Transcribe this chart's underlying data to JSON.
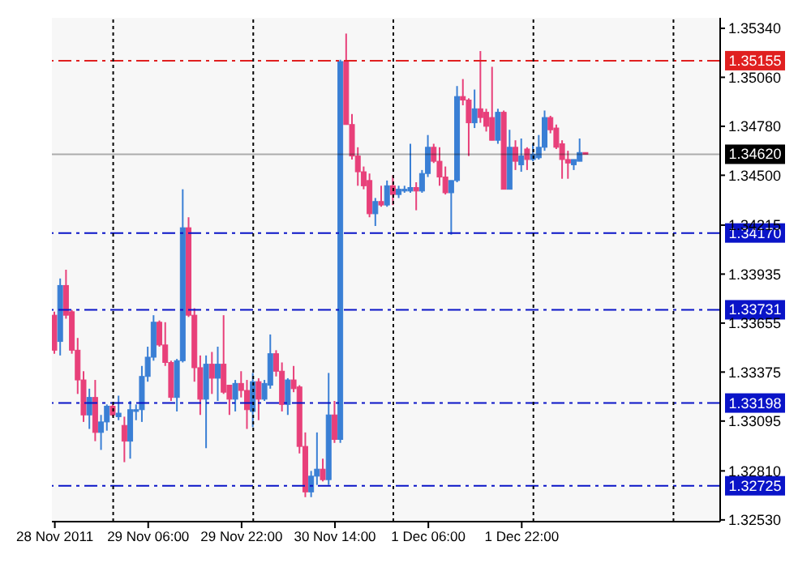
{
  "chart_data": {
    "type": "candlestick",
    "x": [
      "2011-11-28T14:00",
      "2011-11-28T15:00",
      "2011-11-28T16:00",
      "2011-11-28T17:00",
      "2011-11-28T18:00",
      "2011-11-28T19:00",
      "2011-11-28T20:00",
      "2011-11-28T21:00",
      "2011-11-28T22:00",
      "2011-11-28T23:00",
      "2011-11-29T00:00",
      "2011-11-29T01:00",
      "2011-11-29T02:00",
      "2011-11-29T03:00",
      "2011-11-29T04:00",
      "2011-11-29T05:00",
      "2011-11-29T06:00",
      "2011-11-29T07:00",
      "2011-11-29T08:00",
      "2011-11-29T09:00",
      "2011-11-29T10:00",
      "2011-11-29T11:00",
      "2011-11-29T12:00",
      "2011-11-29T13:00",
      "2011-11-29T14:00",
      "2011-11-29T15:00",
      "2011-11-29T16:00",
      "2011-11-29T17:00",
      "2011-11-29T18:00",
      "2011-11-29T19:00",
      "2011-11-29T20:00",
      "2011-11-29T21:00",
      "2011-11-29T22:00",
      "2011-11-29T23:00",
      "2011-11-30T00:00",
      "2011-11-30T01:00",
      "2011-11-30T02:00",
      "2011-11-30T03:00",
      "2011-11-30T04:00",
      "2011-11-30T05:00",
      "2011-11-30T06:00",
      "2011-11-30T07:00",
      "2011-11-30T08:00",
      "2011-11-30T09:00",
      "2011-11-30T10:00",
      "2011-11-30T11:00",
      "2011-11-30T12:00",
      "2011-11-30T13:00",
      "2011-11-30T14:00",
      "2011-11-30T15:00",
      "2011-11-30T16:00",
      "2011-11-30T17:00",
      "2011-11-30T18:00",
      "2011-11-30T19:00",
      "2011-11-30T20:00",
      "2011-11-30T21:00",
      "2011-11-30T22:00",
      "2011-11-30T23:00",
      "2011-12-01T00:00",
      "2011-12-01T01:00",
      "2011-12-01T02:00",
      "2011-12-01T03:00",
      "2011-12-01T04:00",
      "2011-12-01T05:00",
      "2011-12-01T06:00",
      "2011-12-01T07:00",
      "2011-12-01T08:00",
      "2011-12-01T09:00",
      "2011-12-01T10:00",
      "2011-12-01T11:00",
      "2011-12-01T12:00",
      "2011-12-01T13:00",
      "2011-12-01T14:00",
      "2011-12-01T15:00",
      "2011-12-01T16:00",
      "2011-12-01T17:00",
      "2011-12-01T18:00",
      "2011-12-01T19:00",
      "2011-12-01T20:00",
      "2011-12-01T21:00",
      "2011-12-01T22:00",
      "2011-12-01T23:00",
      "2011-12-02T00:00",
      "2011-12-02T01:00",
      "2011-12-02T02:00",
      "2011-12-02T03:00",
      "2011-12-02T04:00",
      "2011-12-02T05:00",
      "2011-12-02T06:00",
      "2011-12-02T07:00",
      "2011-12-02T08:00",
      "2011-12-02T09:00"
    ],
    "ohlc": [
      [
        1.337,
        1.3372,
        1.3348,
        1.335
      ],
      [
        1.3355,
        1.3391,
        1.3347,
        1.3387
      ],
      [
        1.3387,
        1.3396,
        1.3368,
        1.337
      ],
      [
        1.3372,
        1.3373,
        1.3348,
        1.335
      ],
      [
        1.335,
        1.3357,
        1.3325,
        1.3333
      ],
      [
        1.3333,
        1.3338,
        1.3309,
        1.3313
      ],
      [
        1.3313,
        1.3328,
        1.3305,
        1.3323
      ],
      [
        1.3323,
        1.3333,
        1.3298,
        1.3303
      ],
      [
        1.3303,
        1.3313,
        1.3293,
        1.3309
      ],
      [
        1.3309,
        1.3319,
        1.3304,
        1.3318
      ],
      [
        1.3318,
        1.3319,
        1.3312,
        1.3313
      ],
      [
        1.3312,
        1.3324,
        1.331,
        1.3314
      ],
      [
        1.3307,
        1.3312,
        1.3286,
        1.3298
      ],
      [
        1.3298,
        1.3321,
        1.3288,
        1.3316
      ],
      [
        1.3315,
        1.3319,
        1.331,
        1.3316
      ],
      [
        1.3316,
        1.3341,
        1.3309,
        1.3335
      ],
      [
        1.3335,
        1.3352,
        1.3332,
        1.3346
      ],
      [
        1.3346,
        1.337,
        1.3344,
        1.3366
      ],
      [
        1.3366,
        1.3367,
        1.3352,
        1.3353
      ],
      [
        1.3353,
        1.3366,
        1.3341,
        1.3343
      ],
      [
        1.3343,
        1.3344,
        1.3321,
        1.3323
      ],
      [
        1.3323,
        1.3345,
        1.3315,
        1.3344
      ],
      [
        1.3344,
        1.3442,
        1.3343,
        1.342
      ],
      [
        1.342,
        1.3426,
        1.3369,
        1.337
      ],
      [
        1.337,
        1.3374,
        1.3332,
        1.334
      ],
      [
        1.334,
        1.3347,
        1.3313,
        1.3322
      ],
      [
        1.3322,
        1.3347,
        1.3294,
        1.3342
      ],
      [
        1.3342,
        1.3349,
        1.3325,
        1.3334
      ],
      [
        1.3334,
        1.3352,
        1.3321,
        1.3342
      ],
      [
        1.3342,
        1.337,
        1.3325,
        1.3326
      ],
      [
        1.333,
        1.333,
        1.3313,
        1.3322
      ],
      [
        1.3322,
        1.3333,
        1.3315,
        1.3331
      ],
      [
        1.3331,
        1.3338,
        1.3323,
        1.3327
      ],
      [
        1.3327,
        1.3333,
        1.3305,
        1.3316
      ],
      [
        1.3315,
        1.3337,
        1.3306,
        1.3332
      ],
      [
        1.3332,
        1.3334,
        1.331,
        1.3322
      ],
      [
        1.3322,
        1.3333,
        1.3321,
        1.3331
      ],
      [
        1.333,
        1.3359,
        1.3328,
        1.3348
      ],
      [
        1.3348,
        1.335,
        1.3335,
        1.3338
      ],
      [
        1.3338,
        1.3343,
        1.3315,
        1.3319
      ],
      [
        1.3319,
        1.3334,
        1.3313,
        1.3333
      ],
      [
        1.3333,
        1.3341,
        1.3326,
        1.3328
      ],
      [
        1.3329,
        1.333,
        1.3291,
        1.3295
      ],
      [
        1.3295,
        1.3303,
        1.3266,
        1.3269
      ],
      [
        1.3269,
        1.3281,
        1.3266,
        1.3278
      ],
      [
        1.3278,
        1.3303,
        1.3273,
        1.3282
      ],
      [
        1.3282,
        1.3288,
        1.3275,
        1.3276
      ],
      [
        1.3276,
        1.3337,
        1.3273,
        1.3313
      ],
      [
        1.3313,
        1.3321,
        1.3297,
        1.3299
      ],
      [
        1.3299,
        1.3516,
        1.3297,
        1.3515
      ],
      [
        1.3515,
        1.3531,
        1.3479,
        1.3479
      ],
      [
        1.3479,
        1.3485,
        1.3459,
        1.3461
      ],
      [
        1.3461,
        1.3466,
        1.3444,
        1.3452
      ],
      [
        1.3452,
        1.3455,
        1.3442,
        1.3444
      ],
      [
        1.3447,
        1.3451,
        1.3426,
        1.3428
      ],
      [
        1.3428,
        1.3437,
        1.3421,
        1.3435
      ],
      [
        1.3435,
        1.3444,
        1.3432,
        1.3433
      ],
      [
        1.3433,
        1.3447,
        1.3432,
        1.3444
      ],
      [
        1.3444,
        1.345,
        1.3433,
        1.3439
      ],
      [
        1.3439,
        1.3444,
        1.3437,
        1.3442
      ],
      [
        1.3441,
        1.3444,
        1.344,
        1.3442
      ],
      [
        1.3441,
        1.3468,
        1.344,
        1.3443
      ],
      [
        1.3443,
        1.3446,
        1.343,
        1.3441
      ],
      [
        1.3441,
        1.3453,
        1.344,
        1.3451
      ],
      [
        1.3451,
        1.3473,
        1.3449,
        1.3466
      ],
      [
        1.3466,
        1.3468,
        1.3457,
        1.3458
      ],
      [
        1.3458,
        1.3466,
        1.3444,
        1.3449
      ],
      [
        1.3449,
        1.3455,
        1.3439,
        1.344
      ],
      [
        1.344,
        1.3447,
        1.3416,
        1.3447
      ],
      [
        1.3447,
        1.3501,
        1.3446,
        1.3495
      ],
      [
        1.3495,
        1.3505,
        1.349,
        1.3493
      ],
      [
        1.3493,
        1.3494,
        1.3461,
        1.348
      ],
      [
        1.348,
        1.3499,
        1.3477,
        1.3488
      ],
      [
        1.3488,
        1.3521,
        1.348,
        1.3483
      ],
      [
        1.3486,
        1.3488,
        1.3475,
        1.3478
      ],
      [
        1.3483,
        1.3512,
        1.347,
        1.347
      ],
      [
        1.347,
        1.3488,
        1.3468,
        1.3486
      ],
      [
        1.3486,
        1.3487,
        1.3442,
        1.3442
      ],
      [
        1.3442,
        1.3476,
        1.3442,
        1.3466
      ],
      [
        1.3466,
        1.347,
        1.3453,
        1.3458
      ],
      [
        1.3456,
        1.3471,
        1.3452,
        1.3461
      ],
      [
        1.3465,
        1.3466,
        1.3453,
        1.3459
      ],
      [
        1.3459,
        1.3468,
        1.3458,
        1.3462
      ],
      [
        1.346,
        1.3473,
        1.3459,
        1.3466
      ],
      [
        1.3466,
        1.3487,
        1.3464,
        1.3483
      ],
      [
        1.3483,
        1.3484,
        1.3474,
        1.3476
      ],
      [
        1.3477,
        1.3479,
        1.3465,
        1.3466
      ],
      [
        1.3468,
        1.347,
        1.3448,
        1.3459
      ],
      [
        1.3459,
        1.3464,
        1.3448,
        1.3457
      ],
      [
        1.3456,
        1.3459,
        1.3453,
        1.3459
      ],
      [
        1.3458,
        1.3471,
        1.3458,
        1.3463
      ],
      [
        1.3463,
        1.3463,
        1.3462,
        1.3462
      ]
    ],
    "colors": [
      "#e8407a",
      "#3a7fd5",
      "#e8407a",
      "#e8407a",
      "#e8407a",
      "#e8407a",
      "#3a7fd5",
      "#e8407a",
      "#3a7fd5",
      "#3a7fd5",
      "#e8407a",
      "#3a7fd5",
      "#e8407a",
      "#3a7fd5",
      "#3a7fd5",
      "#3a7fd5",
      "#3a7fd5",
      "#3a7fd5",
      "#e8407a",
      "#e8407a",
      "#e8407a",
      "#3a7fd5",
      "#3a7fd5",
      "#e8407a",
      "#e8407a",
      "#e8407a",
      "#3a7fd5",
      "#e8407a",
      "#3a7fd5",
      "#e8407a",
      "#e8407a",
      "#3a7fd5",
      "#e8407a",
      "#e8407a",
      "#3a7fd5",
      "#e8407a",
      "#3a7fd5",
      "#3a7fd5",
      "#e8407a",
      "#e8407a",
      "#3a7fd5",
      "#e8407a",
      "#e8407a",
      "#e8407a",
      "#3a7fd5",
      "#3a7fd5",
      "#e8407a",
      "#3a7fd5",
      "#e8407a",
      "#3a7fd5",
      "#e8407a",
      "#e8407a",
      "#e8407a",
      "#e8407a",
      "#e8407a",
      "#3a7fd5",
      "#e8407a",
      "#3a7fd5",
      "#e8407a",
      "#3a7fd5",
      "#3a7fd5",
      "#3a7fd5",
      "#e8407a",
      "#3a7fd5",
      "#3a7fd5",
      "#e8407a",
      "#e8407a",
      "#e8407a",
      "#3a7fd5",
      "#3a7fd5",
      "#e8407a",
      "#e8407a",
      "#3a7fd5",
      "#e8407a",
      "#e8407a",
      "#e8407a",
      "#3a7fd5",
      "#e8407a",
      "#3a7fd5",
      "#e8407a",
      "#3a7fd5",
      "#e8407a",
      "#3a7fd5",
      "#3a7fd5",
      "#3a7fd5",
      "#e8407a",
      "#e8407a",
      "#e8407a",
      "#e8407a",
      "#3a7fd5",
      "#3a7fd5",
      "#e8407a"
    ],
    "xlim": [
      "2011-11-28T13:30",
      "2011-12-03T08:00"
    ],
    "xticks": [
      {
        "value": "2011-11-28T14:00",
        "label": "28 Nov 2011"
      },
      {
        "value": "2011-11-29T06:00",
        "label": "29 Nov 06:00"
      },
      {
        "value": "2011-11-29T22:00",
        "label": "29 Nov 22:00"
      },
      {
        "value": "2011-11-30T14:00",
        "label": "30 Nov 14:00"
      },
      {
        "value": "2011-12-01T06:00",
        "label": "1 Dec 06:00"
      },
      {
        "value": "2011-12-01T22:00",
        "label": "1 Dec 22:00"
      }
    ],
    "ylim": [
      1.3252,
      1.354
    ],
    "yticks": [
      {
        "value": 1.3534,
        "label": "1.35340"
      },
      {
        "value": 1.3506,
        "label": "1.35060"
      },
      {
        "value": 1.3478,
        "label": "1.34780"
      },
      {
        "value": 1.345,
        "label": "1.34500"
      },
      {
        "value": 1.34215,
        "label": "1.34215"
      },
      {
        "value": 1.33935,
        "label": "1.33935"
      },
      {
        "value": 1.33655,
        "label": "1.33655"
      },
      {
        "value": 1.33375,
        "label": "1.33375"
      },
      {
        "value": 1.33095,
        "label": "1.33095"
      },
      {
        "value": 1.3281,
        "label": "1.32810"
      },
      {
        "value": 1.3253,
        "label": "1.32530"
      }
    ],
    "ref_lines": [
      {
        "axis": "y",
        "value": 1.35155,
        "label": "1.35155",
        "color": "#e02020",
        "line_style": "dashed"
      },
      {
        "axis": "y",
        "value": 1.3462,
        "label": "1.34620",
        "color": "#000000",
        "line_style": "solid"
      },
      {
        "axis": "y",
        "value": 1.3417,
        "label": "1.34170",
        "color": "#0a14c8",
        "line_style": "dashed"
      },
      {
        "axis": "y",
        "value": 1.33731,
        "label": "1.33731",
        "color": "#0a14c8",
        "line_style": "dashed"
      },
      {
        "axis": "y",
        "value": 1.33198,
        "label": "1.33198",
        "color": "#0a14c8",
        "line_style": "dashed"
      },
      {
        "axis": "y",
        "value": 1.32725,
        "label": "1.32725",
        "color": "#0a14c8",
        "line_style": "dashed"
      },
      {
        "axis": "x",
        "value": "2011-11-29T00:00",
        "label": null,
        "color": "#000000",
        "line_style": "dotted"
      },
      {
        "axis": "x",
        "value": "2011-11-30T00:00",
        "label": null,
        "color": "#000000",
        "line_style": "dotted"
      },
      {
        "axis": "x",
        "value": "2011-12-01T00:00",
        "label": null,
        "color": "#000000",
        "line_style": "dotted"
      },
      {
        "axis": "x",
        "value": "2011-12-02T00:00",
        "label": null,
        "color": "#000000",
        "line_style": "dotted"
      },
      {
        "axis": "x",
        "value": "2011-12-03T00:00",
        "label": null,
        "color": "#000000",
        "line_style": "dotted"
      }
    ]
  }
}
